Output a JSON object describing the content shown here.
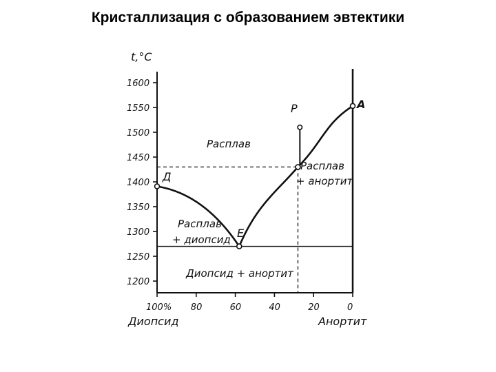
{
  "slide": {
    "title": "Кристаллизация с образованием эвтектики"
  },
  "diagram": {
    "y_axis_label": "t,°C",
    "y_ticks": [
      "1600",
      "1550",
      "1500",
      "1450",
      "1400",
      "1350",
      "1300",
      "1250",
      "1200"
    ],
    "x_ticks": [
      "100%",
      "80",
      "60",
      "40",
      "20",
      "0"
    ],
    "x_left_label": "Диопсид",
    "x_right_label": "Анортит",
    "points": {
      "D": "Д",
      "E": "E",
      "P": "P",
      "A": "A"
    },
    "regions": {
      "melt": "Расплав",
      "melt_diopside_1": "Расплав",
      "melt_diopside_2": "+ диопсид",
      "melt_anorthite_1": "Расплав",
      "melt_anorthite_2": "+ анортит",
      "solid": "Диопсид + анортит"
    },
    "values": {
      "D": {
        "diopside_pct": 100,
        "t": 1391
      },
      "E": {
        "diopside_pct": 58,
        "t": 1270
      },
      "P": {
        "diopside_pct": 27,
        "t": 1510
      },
      "A": {
        "diopside_pct": 0,
        "t": 1553
      },
      "dashed_point": {
        "diopside_pct": 28,
        "t": 1430
      },
      "solidus_t": 1270
    }
  }
}
